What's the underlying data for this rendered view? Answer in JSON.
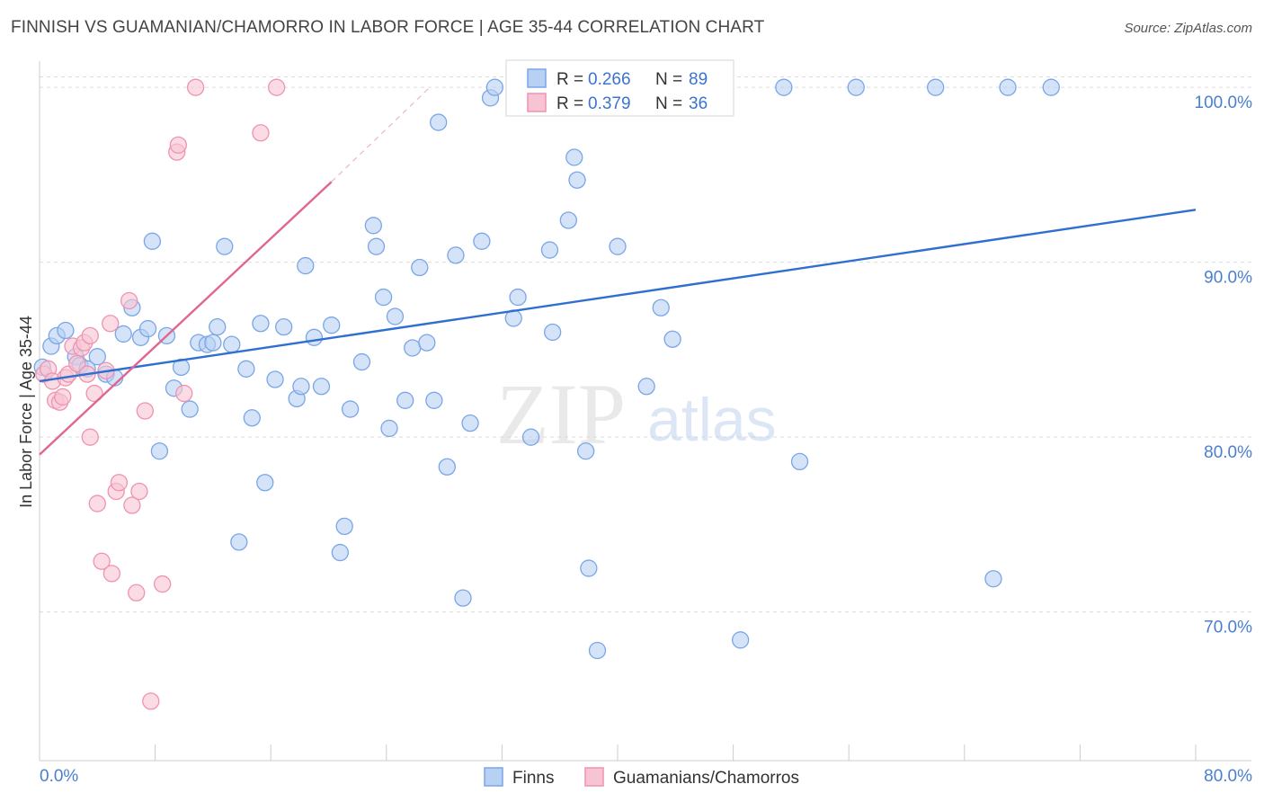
{
  "title": "FINNISH VS GUAMANIAN/CHAMORRO IN LABOR FORCE | AGE 35-44 CORRELATION CHART",
  "source": "Source: ZipAtlas.com",
  "watermark": {
    "zip": "ZIP",
    "atlas": "atlas"
  },
  "colors": {
    "finns_fill": "#b8d0f4",
    "finns_stroke": "#7aa6e6",
    "finns_line": "#2f6fd0",
    "guam_fill": "#f8c4d4",
    "guam_stroke": "#ee93b0",
    "guam_line": "#e0668f",
    "grid": "#dcdcdc",
    "axis_label": "#4a7fd0"
  },
  "chart_data": {
    "type": "scatter",
    "title": "FINNISH VS GUAMANIAN/CHAMORRO IN LABOR FORCE | AGE 35-44 CORRELATION CHART",
    "xlabel": "",
    "ylabel": "In Labor Force | Age 35-44",
    "xlim": [
      0,
      80
    ],
    "ylim": [
      61.5,
      101.5
    ],
    "x_tick_labels": [
      "0.0%",
      "80.0%"
    ],
    "y_ticks": [
      70,
      80,
      90,
      100
    ],
    "y_tick_labels": [
      "70.0%",
      "80.0%",
      "90.0%",
      "100.0%"
    ],
    "grid": true,
    "legend_placement": "top-center",
    "legend": [
      {
        "r_label": "R =",
        "r": "0.266",
        "n_label": "N =",
        "n": "89"
      },
      {
        "r_label": "R =",
        "r": "0.379",
        "n_label": "N =",
        "n": "36"
      }
    ],
    "series": [
      {
        "name": "Finns",
        "trend": {
          "x": [
            0,
            80
          ],
          "y": [
            83.2,
            93.0
          ]
        },
        "points": [
          [
            0.2,
            84.0
          ],
          [
            0.8,
            85.2
          ],
          [
            1.2,
            85.8
          ],
          [
            1.8,
            86.1
          ],
          [
            2.5,
            84.6
          ],
          [
            2.8,
            84.1
          ],
          [
            3.3,
            83.9
          ],
          [
            4.0,
            84.6
          ],
          [
            4.6,
            83.6
          ],
          [
            5.2,
            83.4
          ],
          [
            5.8,
            85.9
          ],
          [
            6.4,
            87.4
          ],
          [
            7.0,
            85.7
          ],
          [
            7.5,
            86.2
          ],
          [
            7.8,
            91.2
          ],
          [
            8.3,
            79.2
          ],
          [
            8.8,
            85.8
          ],
          [
            9.3,
            82.8
          ],
          [
            9.8,
            84.0
          ],
          [
            10.4,
            81.6
          ],
          [
            11.0,
            85.4
          ],
          [
            11.6,
            85.3
          ],
          [
            12.0,
            85.4
          ],
          [
            12.3,
            86.3
          ],
          [
            12.8,
            90.9
          ],
          [
            13.3,
            85.3
          ],
          [
            13.8,
            74.0
          ],
          [
            14.3,
            83.9
          ],
          [
            14.7,
            81.1
          ],
          [
            15.3,
            86.5
          ],
          [
            15.6,
            77.4
          ],
          [
            16.3,
            83.3
          ],
          [
            16.9,
            86.3
          ],
          [
            17.8,
            82.2
          ],
          [
            18.1,
            82.9
          ],
          [
            18.4,
            89.8
          ],
          [
            19.0,
            85.7
          ],
          [
            19.5,
            82.9
          ],
          [
            20.2,
            86.4
          ],
          [
            20.8,
            73.4
          ],
          [
            21.1,
            74.9
          ],
          [
            21.5,
            81.6
          ],
          [
            22.3,
            84.3
          ],
          [
            23.1,
            92.1
          ],
          [
            23.3,
            90.9
          ],
          [
            23.8,
            88.0
          ],
          [
            24.2,
            80.5
          ],
          [
            24.6,
            86.9
          ],
          [
            25.3,
            82.1
          ],
          [
            25.8,
            85.1
          ],
          [
            26.3,
            89.7
          ],
          [
            26.8,
            85.4
          ],
          [
            27.3,
            82.1
          ],
          [
            27.6,
            98.0
          ],
          [
            28.2,
            78.3
          ],
          [
            28.8,
            90.4
          ],
          [
            29.3,
            70.8
          ],
          [
            29.8,
            80.8
          ],
          [
            30.6,
            91.2
          ],
          [
            31.2,
            99.4
          ],
          [
            31.5,
            100.0
          ],
          [
            32.8,
            86.8
          ],
          [
            33.1,
            88.0
          ],
          [
            34.0,
            80.0
          ],
          [
            34.8,
            100.0
          ],
          [
            35.3,
            90.7
          ],
          [
            35.5,
            86.0
          ],
          [
            36.6,
            92.4
          ],
          [
            37.0,
            96.0
          ],
          [
            37.2,
            94.7
          ],
          [
            37.8,
            79.2
          ],
          [
            38.0,
            72.5
          ],
          [
            38.6,
            67.8
          ],
          [
            40.0,
            90.9
          ],
          [
            41.0,
            100.0
          ],
          [
            42.0,
            82.9
          ],
          [
            43.0,
            87.4
          ],
          [
            43.8,
            85.6
          ],
          [
            45.5,
            100.0
          ],
          [
            48.5,
            68.4
          ],
          [
            51.5,
            100.0
          ],
          [
            52.6,
            78.6
          ],
          [
            56.5,
            100.0
          ],
          [
            62.0,
            100.0
          ],
          [
            66.0,
            71.9
          ],
          [
            67.0,
            100.0
          ],
          [
            70.0,
            100.0
          ],
          [
            36.0,
            100.0
          ],
          [
            40.5,
            100.0
          ]
        ]
      },
      {
        "name": "Guamanians/Chamorros",
        "trend": {
          "x": [
            0,
            20.2
          ],
          "y": [
            79.0,
            94.6
          ]
        },
        "trend_extension": {
          "x": [
            20.2,
            27.0
          ],
          "y": [
            94.6,
            100.0
          ]
        },
        "points": [
          [
            0.3,
            83.6
          ],
          [
            0.6,
            83.9
          ],
          [
            0.9,
            83.2
          ],
          [
            1.1,
            82.1
          ],
          [
            1.4,
            82.0
          ],
          [
            1.6,
            82.3
          ],
          [
            1.8,
            83.4
          ],
          [
            2.0,
            83.6
          ],
          [
            2.3,
            85.2
          ],
          [
            2.6,
            84.2
          ],
          [
            2.9,
            85.1
          ],
          [
            3.1,
            85.4
          ],
          [
            3.3,
            83.6
          ],
          [
            3.5,
            85.8
          ],
          [
            3.5,
            80.0
          ],
          [
            3.8,
            82.5
          ],
          [
            4.0,
            76.2
          ],
          [
            4.3,
            72.9
          ],
          [
            4.6,
            83.8
          ],
          [
            4.9,
            86.5
          ],
          [
            5.0,
            72.2
          ],
          [
            5.3,
            76.9
          ],
          [
            5.5,
            77.4
          ],
          [
            6.2,
            87.8
          ],
          [
            6.4,
            76.1
          ],
          [
            6.7,
            71.1
          ],
          [
            6.9,
            76.9
          ],
          [
            7.3,
            81.5
          ],
          [
            7.7,
            64.9
          ],
          [
            8.5,
            71.6
          ],
          [
            9.5,
            96.3
          ],
          [
            9.6,
            96.7
          ],
          [
            10.0,
            82.5
          ],
          [
            10.8,
            100.0
          ],
          [
            15.3,
            97.4
          ],
          [
            16.4,
            100.0
          ]
        ]
      }
    ]
  },
  "bottom_legend": [
    {
      "label": "Finns"
    },
    {
      "label": "Guamanians/Chamorros"
    }
  ]
}
